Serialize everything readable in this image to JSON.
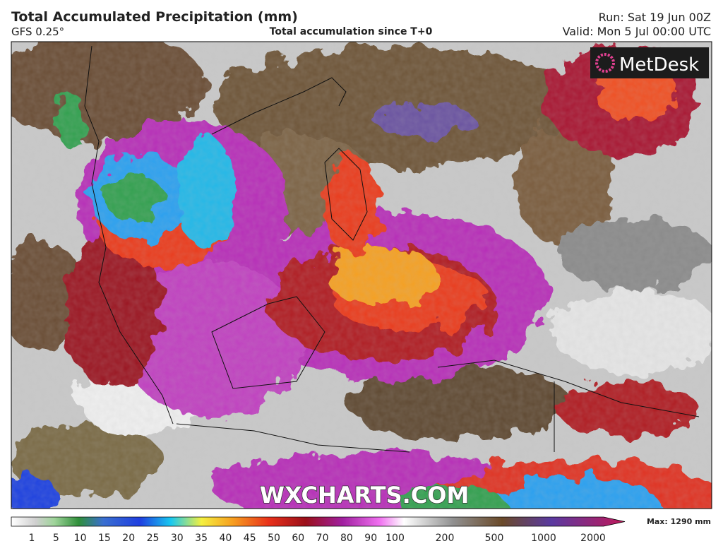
{
  "header": {
    "title": "Total Accumulated Precipitation (mm)",
    "model": "GFS 0.25°",
    "subtitle": "Total accumulation since T+0",
    "run": "Run: Sat 19 Jun 00Z",
    "valid": "Valid: Mon 5 Jul 00:00 UTC"
  },
  "logo": "MetDesk",
  "watermark": "WXCHARTS.COM",
  "colorbar": {
    "ticks": [
      1,
      5,
      10,
      15,
      20,
      25,
      30,
      35,
      40,
      45,
      50,
      60,
      70,
      80,
      90,
      100,
      200,
      500,
      1000,
      2000
    ],
    "max_label": "Max: 1290 mm"
  }
}
